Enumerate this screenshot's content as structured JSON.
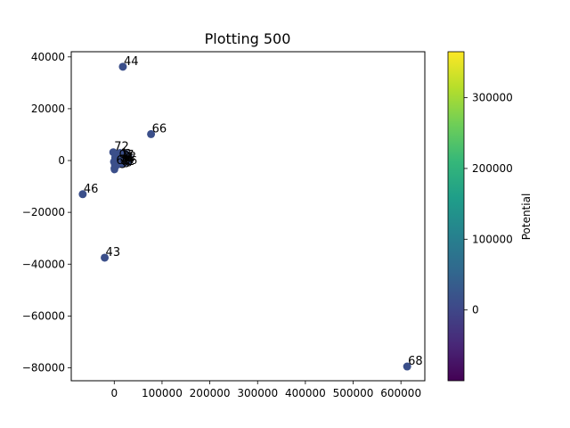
{
  "chart_data": {
    "type": "scatter",
    "title": "Plotting 500",
    "xlabel": "",
    "ylabel": "",
    "xlim": [
      -90000,
      650000
    ],
    "ylim": [
      -85000,
      42000
    ],
    "grid": false,
    "x_ticks": [
      0,
      100000,
      200000,
      300000,
      400000,
      500000,
      600000
    ],
    "x_tick_labels": [
      "0",
      "100000",
      "200000",
      "300000",
      "400000",
      "500000",
      "600000"
    ],
    "y_ticks": [
      40000,
      20000,
      0,
      -20000,
      -40000,
      -60000,
      -80000
    ],
    "y_tick_labels": [
      "40000",
      "20000",
      "0",
      "−20000",
      "−40000",
      "−60000",
      "−80000"
    ],
    "colorbar": {
      "label": "Potential",
      "colormap": "viridis",
      "range": [
        -100000,
        365000
      ],
      "ticks": [
        0,
        100000,
        200000,
        300000
      ],
      "tick_labels": [
        "0",
        "100000",
        "200000",
        "300000"
      ],
      "stops": [
        "#440154",
        "#482878",
        "#3e4989",
        "#31688e",
        "#26828e",
        "#1f9e89",
        "#35b779",
        "#6ece58",
        "#b5de2b",
        "#fde725"
      ]
    },
    "points": [
      {
        "label": "44",
        "x": 18000,
        "y": 36200,
        "potential": 0
      },
      {
        "label": "66",
        "x": 77000,
        "y": 10200,
        "potential": 0
      },
      {
        "label": "72",
        "x": -2000,
        "y": 3200,
        "potential": 0
      },
      {
        "label": "62",
        "x": 2000,
        "y": -2000,
        "potential": 0
      },
      {
        "label": "46",
        "x": -66000,
        "y": -13000,
        "potential": 0
      },
      {
        "label": "43",
        "x": -20000,
        "y": -37500,
        "potential": 0
      },
      {
        "label": "68",
        "x": 613000,
        "y": -79500,
        "potential": 0
      }
    ],
    "cluster_points": [
      {
        "x": 500,
        "y": 0
      },
      {
        "x": 1000,
        "y": -1500
      },
      {
        "x": 0,
        "y": -3000
      },
      {
        "x": 3000,
        "y": -800
      },
      {
        "x": 1500,
        "y": 1200
      },
      {
        "x": 4000,
        "y": 500
      },
      {
        "x": -1000,
        "y": -500
      },
      {
        "x": 2000,
        "y": -2500
      },
      {
        "x": 500,
        "y": -3500
      }
    ],
    "cluster_label_points": [
      {
        "x": 8000,
        "y": 2500
      },
      {
        "x": 12000,
        "y": 3000
      },
      {
        "x": 16000,
        "y": 2000
      },
      {
        "x": 20000,
        "y": 2800
      },
      {
        "x": 24000,
        "y": 1500
      },
      {
        "x": 28000,
        "y": 800
      },
      {
        "x": 32000,
        "y": 0
      },
      {
        "x": 10000,
        "y": 500
      },
      {
        "x": 14000,
        "y": -500
      },
      {
        "x": 18000,
        "y": 0
      },
      {
        "x": 22000,
        "y": -800
      },
      {
        "x": 26000,
        "y": -300
      },
      {
        "x": 30000,
        "y": 1800
      },
      {
        "x": 9000,
        "y": -1500
      },
      {
        "x": 13000,
        "y": 1500
      },
      {
        "x": 17000,
        "y": -1200
      },
      {
        "x": 21000,
        "y": 1000
      },
      {
        "x": 25000,
        "y": 2500
      }
    ],
    "marker_color": "#3b4f8a"
  }
}
